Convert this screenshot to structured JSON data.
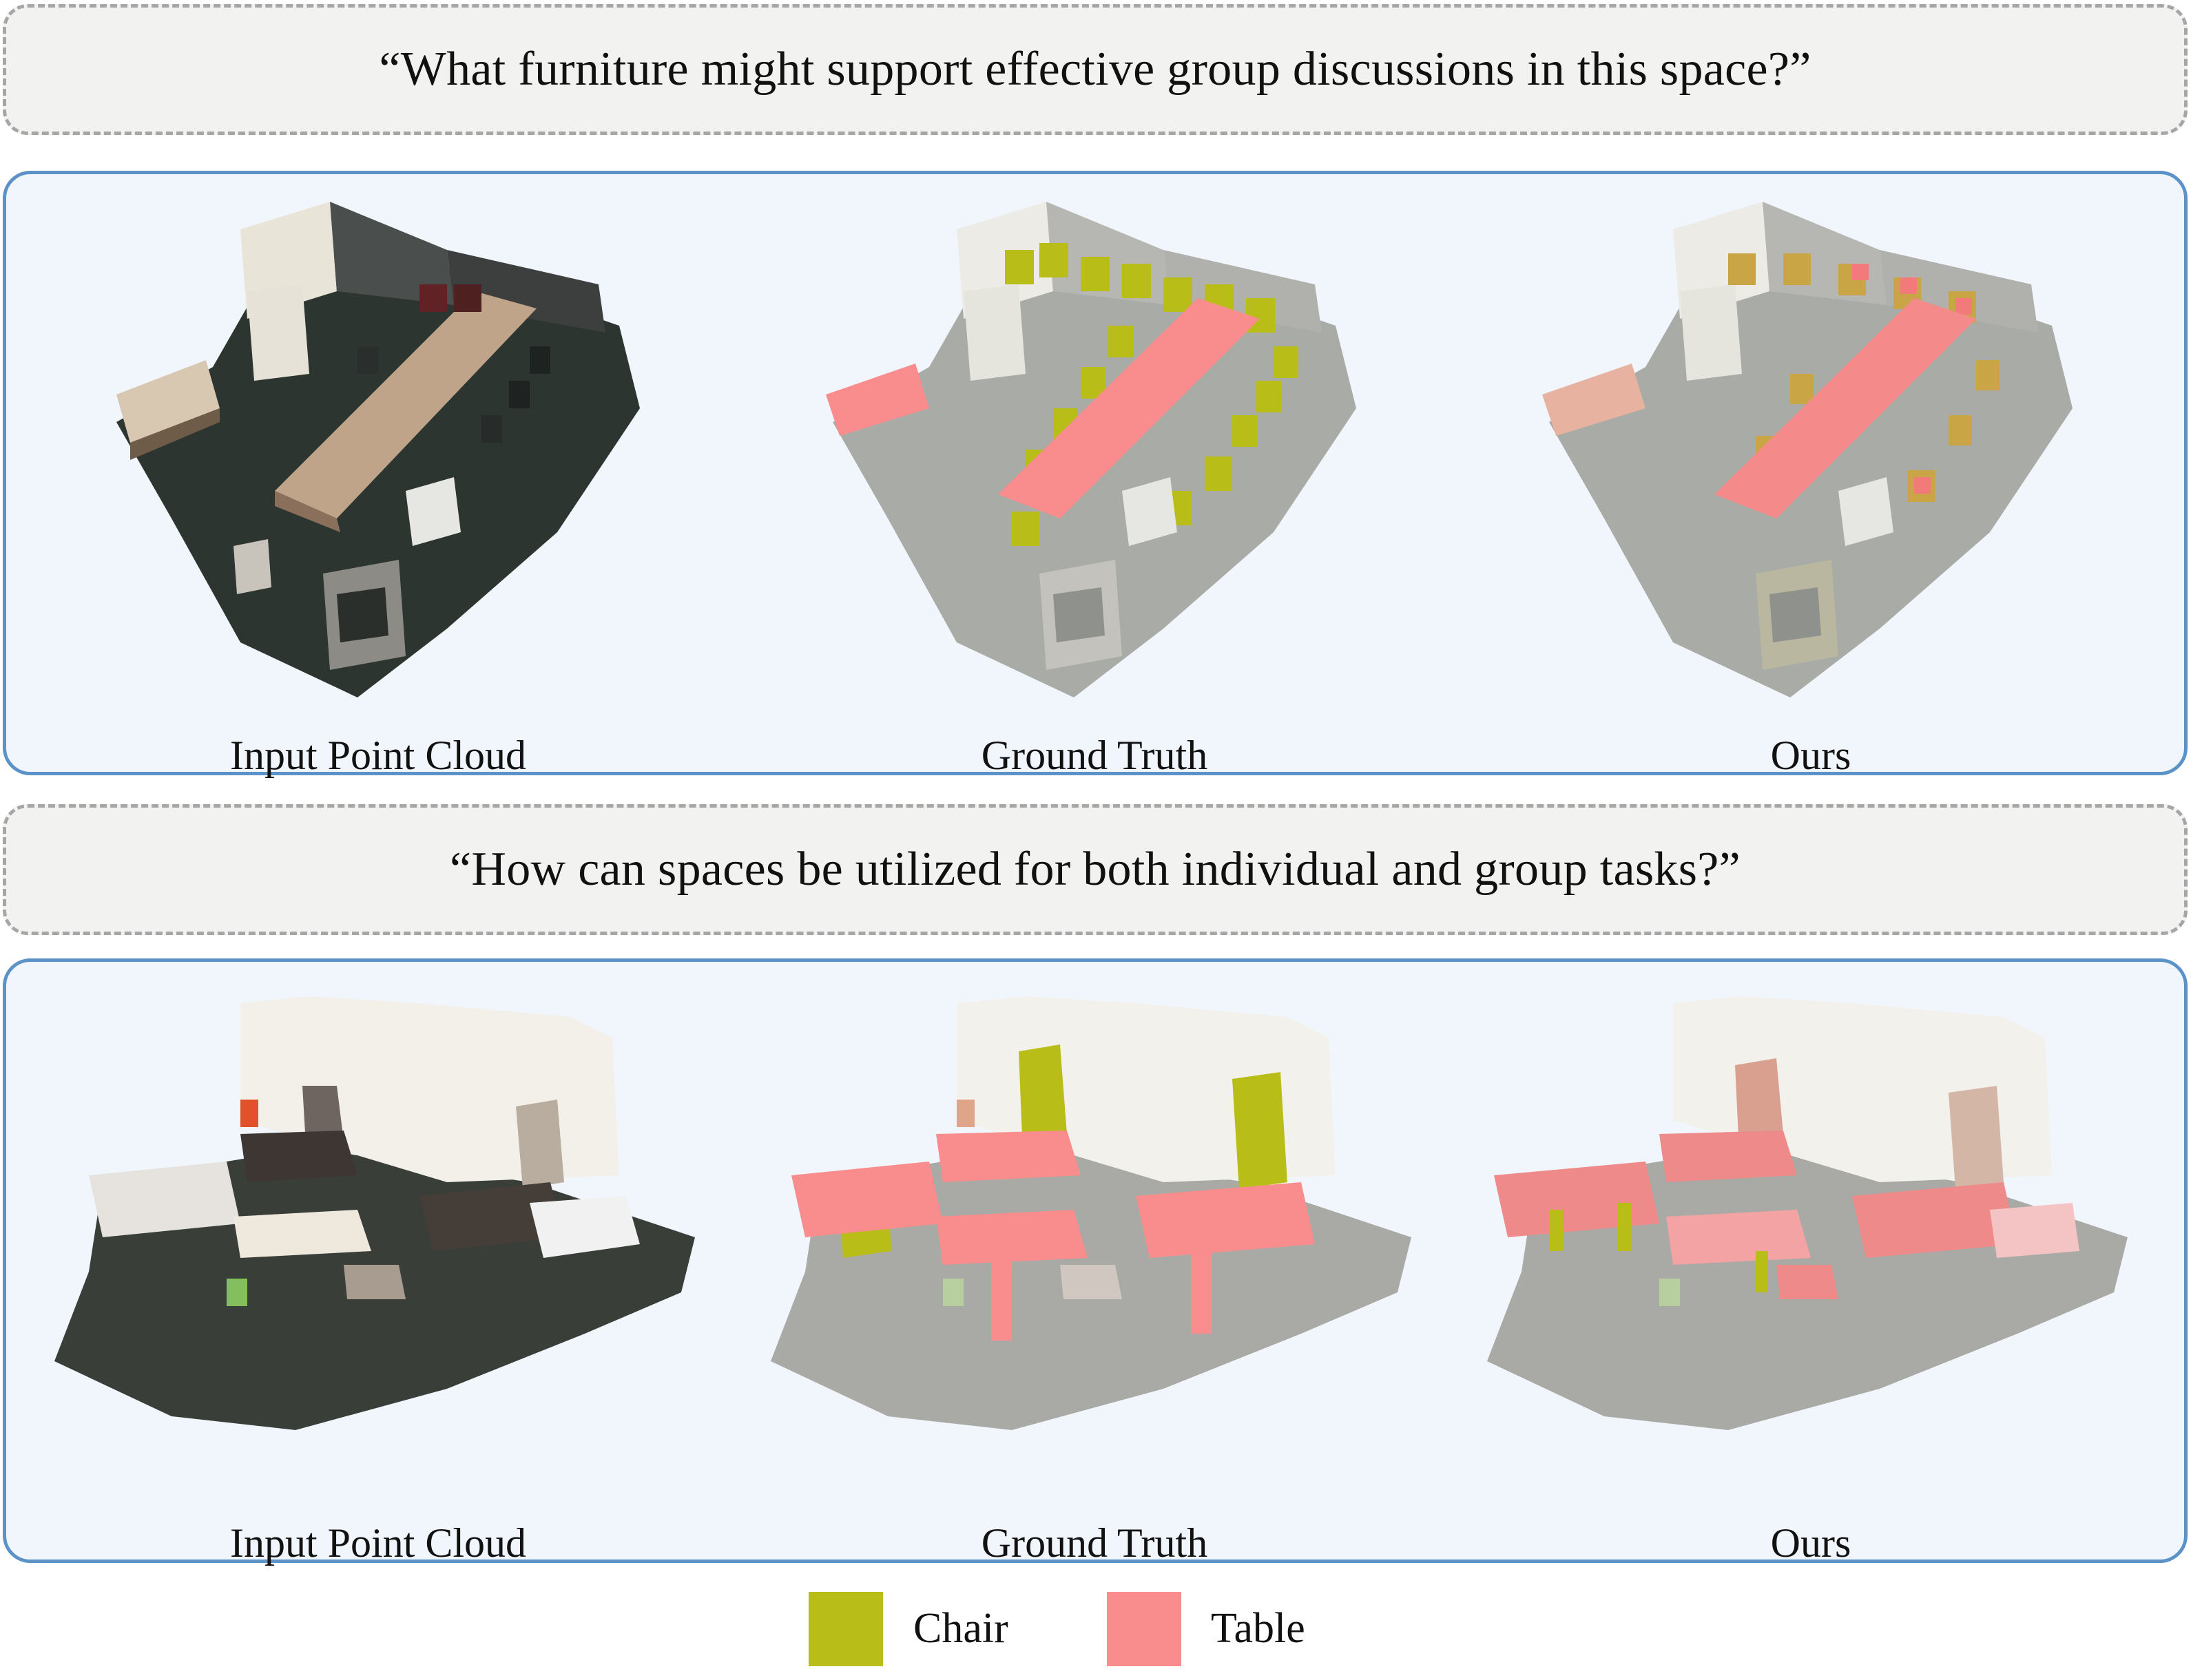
{
  "rows": [
    {
      "query": "“What furniture might support effective group discussions in this space?”",
      "captions": [
        "Input Point Cloud",
        "Ground Truth",
        "Ours"
      ]
    },
    {
      "query": "“How can spaces be utilized for both individual and group tasks?”",
      "captions": [
        "Input Point Cloud",
        "Ground Truth",
        "Ours"
      ]
    }
  ],
  "legend": [
    {
      "label": "Chair",
      "color": "#b9bd18"
    },
    {
      "label": "Table",
      "color": "#f98c8c"
    }
  ],
  "colors": {
    "panel_border": "#5b92c7",
    "panel_bg": "#f1f6fc",
    "query_bg": "#f2f2f1",
    "query_border": "#a6a6a6",
    "chair": "#b9bd18",
    "table": "#f98c8c"
  }
}
